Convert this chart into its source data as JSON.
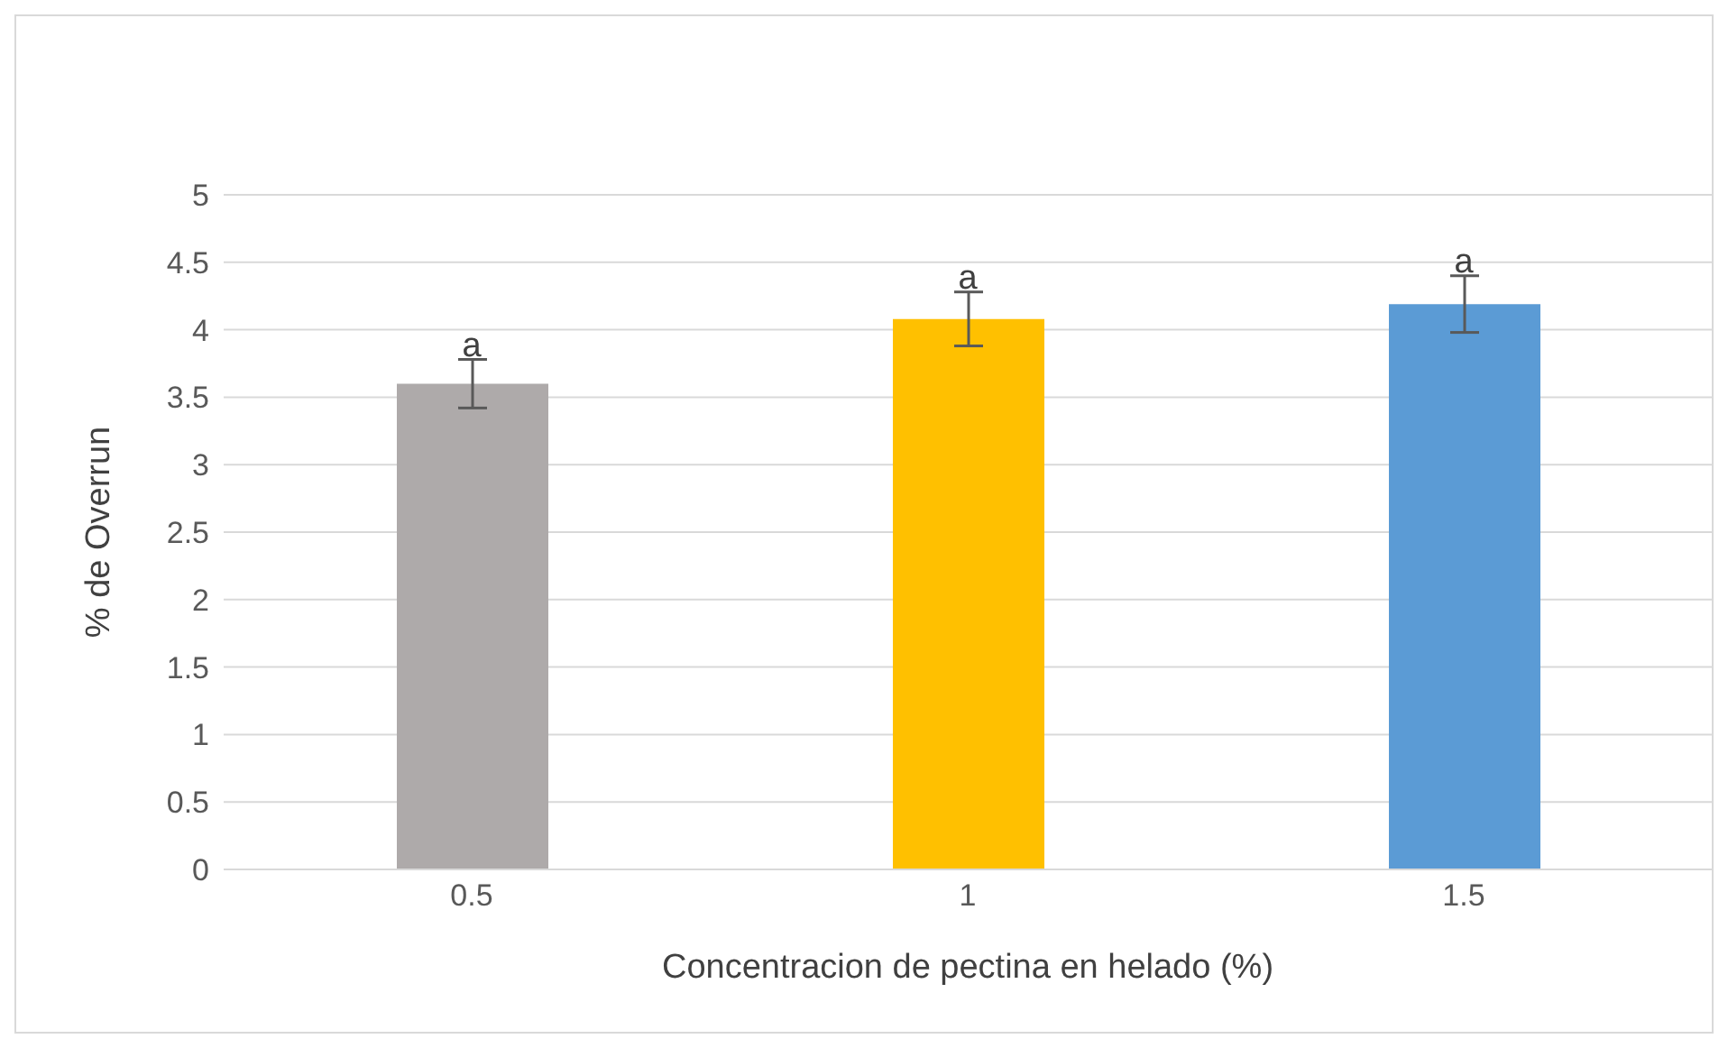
{
  "chart_data": {
    "type": "bar",
    "xlabel": "Concentracion de pectina en helado (%)",
    "ylabel": "% de Overrun",
    "categories": [
      "0.5",
      "1",
      "1.5"
    ],
    "values": [
      3.6,
      4.08,
      4.19
    ],
    "colors": [
      "#aeaaaa",
      "#ffc000",
      "#5b9bd5"
    ],
    "errors": [
      0.18,
      0.2,
      0.21
    ],
    "ylim": [
      0,
      5
    ],
    "yticks": [
      0,
      0.5,
      1,
      1.5,
      2,
      2.5,
      3,
      3.5,
      4,
      4.5,
      5
    ],
    "grid": "y",
    "annotations": [
      {
        "text": "a",
        "x": "0.5",
        "y": 3.78
      },
      {
        "text": "a",
        "x": "1",
        "y": 4.28
      },
      {
        "text": "a",
        "x": "1.5",
        "y": 4.4
      }
    ]
  }
}
